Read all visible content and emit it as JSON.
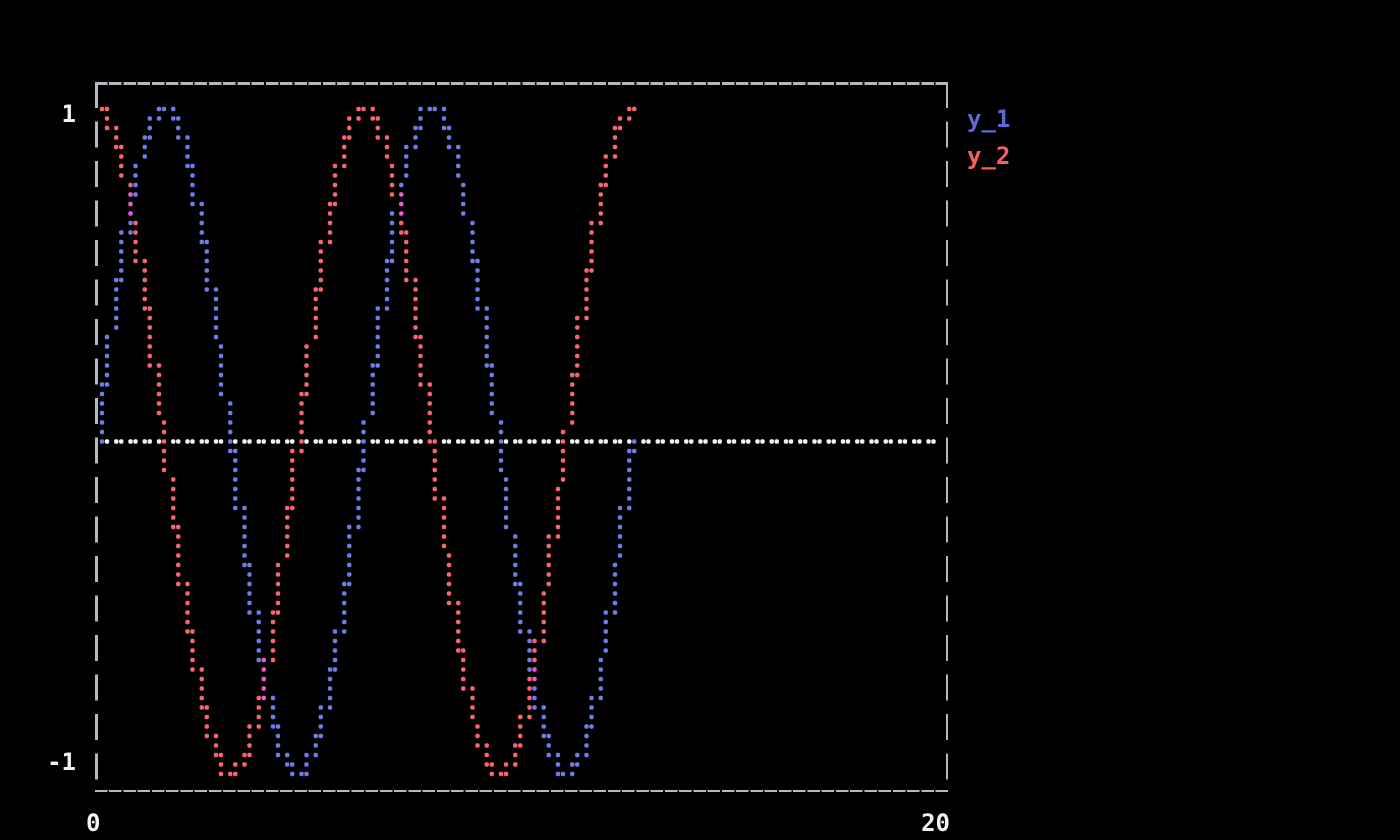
{
  "figure": {
    "background": "#000000",
    "border_color": "#b4b9c1",
    "text_color": "#f2f2f2",
    "axis": {
      "y_top_label": "1",
      "y_bottom_label": "-1",
      "x_left_label": "0",
      "x_right_label": "20"
    },
    "legend": [
      {
        "label": "y_1",
        "color": "#5d6ad6"
      },
      {
        "label": "y_2",
        "color": "#f4615f"
      }
    ]
  },
  "chart_data": {
    "type": "scatter",
    "style": "terminal-braille-dots",
    "title": "",
    "xlabel": "",
    "ylabel": "",
    "xlim": [
      0,
      20
    ],
    "ylim": [
      -1,
      1
    ],
    "x_tick_labels": [
      "0",
      "20"
    ],
    "y_tick_labels": [
      "1",
      "-1"
    ],
    "grid": false,
    "legend_position": "right-outside-top",
    "series": [
      {
        "name": "y_1",
        "fn": "sin",
        "color": "#6e7ce8",
        "x_range": [
          0,
          12.566370614
        ],
        "amplitude": 1,
        "period": 6.283185307
      },
      {
        "name": "y_2",
        "fn": "cos",
        "color": "#f8656c",
        "x_range": [
          0,
          12.566370614
        ],
        "amplitude": 1,
        "period": 6.283185307
      }
    ],
    "overlap_color": "#ee58d4",
    "zero_line": {
      "y": 0,
      "color": "#f2f2f2",
      "x_range": [
        0,
        19.58
      ]
    },
    "samples": 1400
  }
}
